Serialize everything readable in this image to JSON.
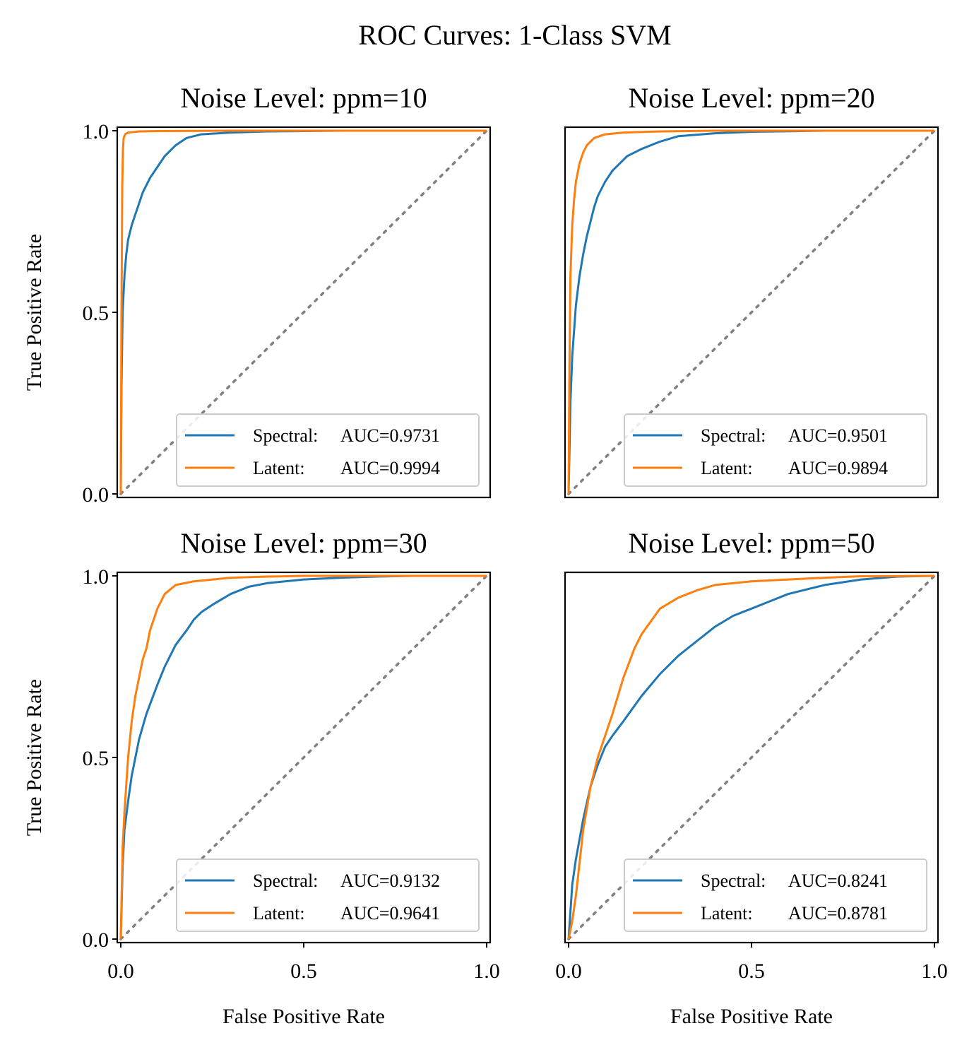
{
  "figure": {
    "title": "ROC Curves: 1-Class SVM"
  },
  "colors": {
    "spectral": "#1f77b4",
    "latent": "#ff7f0e",
    "diagonal": "#808080",
    "axis": "#000000"
  },
  "chart_data": [
    {
      "type": "line",
      "title": "Noise Level: ppm=10",
      "xlabel": "",
      "ylabel": "True Positive Rate",
      "xlim": [
        0,
        1
      ],
      "ylim": [
        0,
        1
      ],
      "xticks": [],
      "yticks": [
        "0.0",
        "0.5",
        "1.0"
      ],
      "legend_position": "bottom-right",
      "series": [
        {
          "name": "Spectral",
          "legend_prefix": "Spectral:",
          "legend_value": "AUC=0.9731",
          "auc": 0.9731,
          "x": [
            0,
            0.002,
            0.005,
            0.01,
            0.015,
            0.02,
            0.03,
            0.04,
            0.05,
            0.06,
            0.07,
            0.08,
            0.1,
            0.12,
            0.15,
            0.18,
            0.22,
            0.3,
            0.4,
            0.6,
            1.0
          ],
          "y": [
            0,
            0.3,
            0.5,
            0.6,
            0.66,
            0.7,
            0.74,
            0.77,
            0.8,
            0.83,
            0.85,
            0.87,
            0.9,
            0.93,
            0.96,
            0.98,
            0.99,
            0.995,
            0.998,
            1.0,
            1.0
          ]
        },
        {
          "name": "Latent",
          "legend_prefix": "Latent:",
          "legend_value": "AUC=0.9994",
          "auc": 0.9994,
          "x": [
            0,
            0.002,
            0.004,
            0.006,
            0.008,
            0.012,
            0.02,
            0.05,
            0.1,
            0.3,
            1.0
          ],
          "y": [
            0,
            0.5,
            0.85,
            0.95,
            0.98,
            0.99,
            0.995,
            0.998,
            0.999,
            1.0,
            1.0
          ]
        }
      ]
    },
    {
      "type": "line",
      "title": "Noise Level: ppm=20",
      "xlabel": "",
      "ylabel": "",
      "xlim": [
        0,
        1
      ],
      "ylim": [
        0,
        1
      ],
      "xticks": [],
      "yticks": [],
      "legend_position": "bottom-right",
      "series": [
        {
          "name": "Spectral",
          "legend_prefix": "Spectral:",
          "legend_value": "AUC=0.9501",
          "auc": 0.9501,
          "x": [
            0,
            0.005,
            0.01,
            0.02,
            0.03,
            0.04,
            0.05,
            0.06,
            0.07,
            0.08,
            0.1,
            0.12,
            0.14,
            0.16,
            0.2,
            0.25,
            0.3,
            0.4,
            0.5,
            0.7,
            1.0
          ],
          "y": [
            0,
            0.25,
            0.38,
            0.52,
            0.6,
            0.66,
            0.71,
            0.75,
            0.79,
            0.82,
            0.86,
            0.89,
            0.91,
            0.93,
            0.95,
            0.97,
            0.985,
            0.993,
            0.997,
            1.0,
            1.0
          ]
        },
        {
          "name": "Latent",
          "legend_prefix": "Latent:",
          "legend_value": "AUC=0.9894",
          "auc": 0.9894,
          "x": [
            0,
            0.002,
            0.005,
            0.01,
            0.015,
            0.02,
            0.03,
            0.04,
            0.05,
            0.07,
            0.1,
            0.15,
            0.25,
            0.4,
            1.0
          ],
          "y": [
            0,
            0.3,
            0.6,
            0.74,
            0.81,
            0.86,
            0.91,
            0.94,
            0.96,
            0.98,
            0.99,
            0.995,
            0.998,
            1.0,
            1.0
          ]
        }
      ]
    },
    {
      "type": "line",
      "title": "Noise Level: ppm=30",
      "xlabel": "False Positive Rate",
      "ylabel": "True Positive Rate",
      "xlim": [
        0,
        1
      ],
      "ylim": [
        0,
        1
      ],
      "xticks": [
        "0.0",
        "0.5",
        "1.0"
      ],
      "yticks": [
        "0.0",
        "0.5",
        "1.0"
      ],
      "legend_position": "bottom-right",
      "series": [
        {
          "name": "Spectral",
          "legend_prefix": "Spectral:",
          "legend_value": "AUC=0.9132",
          "auc": 0.9132,
          "x": [
            0,
            0.005,
            0.01,
            0.02,
            0.03,
            0.05,
            0.07,
            0.1,
            0.12,
            0.15,
            0.18,
            0.2,
            0.22,
            0.25,
            0.3,
            0.35,
            0.4,
            0.5,
            0.6,
            0.7,
            0.8,
            1.0
          ],
          "y": [
            0,
            0.2,
            0.3,
            0.38,
            0.45,
            0.55,
            0.62,
            0.7,
            0.75,
            0.81,
            0.85,
            0.88,
            0.9,
            0.92,
            0.95,
            0.97,
            0.98,
            0.99,
            0.995,
            0.998,
            1.0,
            1.0
          ]
        },
        {
          "name": "Latent",
          "legend_prefix": "Latent:",
          "legend_value": "AUC=0.9641",
          "auc": 0.9641,
          "x": [
            0,
            0.005,
            0.01,
            0.02,
            0.03,
            0.04,
            0.05,
            0.06,
            0.07,
            0.08,
            0.1,
            0.12,
            0.15,
            0.2,
            0.3,
            0.4,
            0.5,
            1.0
          ],
          "y": [
            0,
            0.25,
            0.35,
            0.5,
            0.6,
            0.67,
            0.72,
            0.77,
            0.8,
            0.85,
            0.91,
            0.95,
            0.975,
            0.985,
            0.995,
            0.998,
            1.0,
            1.0
          ]
        }
      ]
    },
    {
      "type": "line",
      "title": "Noise Level: ppm=50",
      "xlabel": "False Positive Rate",
      "ylabel": "",
      "xlim": [
        0,
        1
      ],
      "ylim": [
        0,
        1
      ],
      "xticks": [
        "0.0",
        "0.5",
        "1.0"
      ],
      "yticks": [],
      "legend_position": "bottom-right",
      "series": [
        {
          "name": "Spectral",
          "legend_prefix": "Spectral:",
          "legend_value": "AUC=0.8241",
          "auc": 0.8241,
          "x": [
            0,
            0.01,
            0.02,
            0.04,
            0.06,
            0.08,
            0.1,
            0.12,
            0.15,
            0.2,
            0.25,
            0.3,
            0.35,
            0.4,
            0.45,
            0.5,
            0.55,
            0.6,
            0.7,
            0.8,
            0.9,
            1.0
          ],
          "y": [
            0,
            0.15,
            0.22,
            0.33,
            0.42,
            0.48,
            0.53,
            0.56,
            0.6,
            0.67,
            0.73,
            0.78,
            0.82,
            0.86,
            0.89,
            0.91,
            0.93,
            0.95,
            0.975,
            0.99,
            0.998,
            1.0
          ]
        },
        {
          "name": "Latent",
          "legend_prefix": "Latent:",
          "legend_value": "AUC=0.8781",
          "auc": 0.8781,
          "x": [
            0,
            0.01,
            0.02,
            0.04,
            0.06,
            0.08,
            0.1,
            0.12,
            0.15,
            0.18,
            0.2,
            0.25,
            0.3,
            0.35,
            0.4,
            0.5,
            0.6,
            0.7,
            0.8,
            1.0
          ],
          "y": [
            0,
            0.05,
            0.12,
            0.3,
            0.42,
            0.5,
            0.56,
            0.62,
            0.72,
            0.8,
            0.84,
            0.91,
            0.94,
            0.96,
            0.975,
            0.985,
            0.99,
            0.995,
            0.999,
            1.0
          ]
        }
      ]
    }
  ]
}
